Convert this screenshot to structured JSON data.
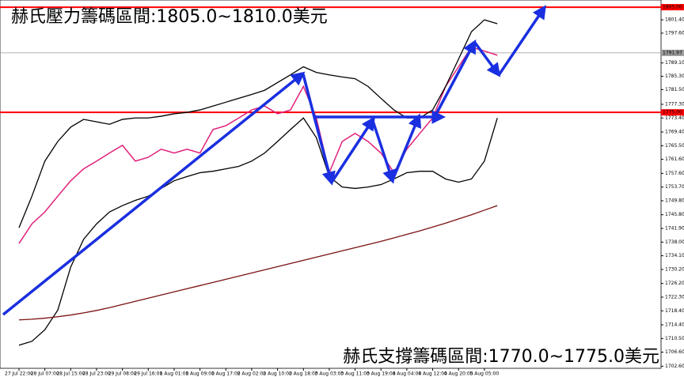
{
  "chart_data": {
    "type": "line",
    "annotations": [
      "赫氏壓力籌碼區間:1805.0~1810.0美元",
      "赫氏支撐籌碼區間:1770.0~1775.0美元"
    ],
    "categories": [
      "27 Jul 22:00",
      null,
      "28 Jul 07:00",
      null,
      "28 Jul 15:00",
      null,
      "28 Jul 23:00",
      null,
      "29 Jul 08:00",
      null,
      "29 Jul 16:00",
      null,
      "1 Aug 01:00",
      null,
      "1 Aug 09:00",
      null,
      "1 Aug 17:00",
      null,
      "2 Aug 02:00",
      null,
      "2 Aug 10:00",
      null,
      "2 Aug 18:00",
      null,
      "3 Aug 03:00",
      null,
      "3 Aug 11:00",
      null,
      "3 Aug 19:00",
      null,
      "4 Aug 04:00",
      null,
      "4 Aug 12:00",
      null,
      "4 Aug 20:00",
      null,
      "5 Aug 05:00",
      null
    ],
    "series": [
      {
        "color": "#e0207a",
        "values": [
          1737.6,
          1743.2,
          1746.6,
          1751.1,
          1755.5,
          1758.9,
          1761.1,
          1763.4,
          1765.6,
          1761.1,
          1762.2,
          1764.5,
          1763.4,
          1764.5,
          1763.4,
          1770.1,
          1771.2,
          1773.4,
          1775.7,
          1776.8,
          1774.6,
          1775.7,
          1782.4,
          1773.4,
          1757.8,
          1766.7,
          1769.0,
          1766.7,
          1763.4,
          1757.8,
          1764.5,
          1769.0,
          1773.4,
          1782.4,
          1788.0,
          1793.6,
          1792.5,
          1791.3
        ]
      },
      {
        "color": "#000000",
        "values": [
          1742.1,
          1751.1,
          1761.1,
          1766.7,
          1770.8,
          1773.0,
          1772.3,
          1771.6,
          1773.0,
          1773.4,
          1773.4,
          1773.9,
          1774.6,
          1775.0,
          1775.7,
          1776.8,
          1777.9,
          1779.0,
          1780.1,
          1781.3,
          1783.5,
          1785.7,
          1788.0,
          1786.4,
          1785.7,
          1785.1,
          1784.6,
          1782.4,
          1779.0,
          1775.7,
          1773.4,
          1773.4,
          1775.7,
          1782.4,
          1790.2,
          1798.0,
          1801.4,
          1800.3
        ]
      },
      {
        "color": "#000000",
        "values": [
          1708.6,
          1709.7,
          1713.0,
          1718.6,
          1730.9,
          1738.8,
          1743.2,
          1746.6,
          1748.4,
          1749.9,
          1751.1,
          1753.3,
          1755.5,
          1756.7,
          1757.8,
          1758.2,
          1758.9,
          1759.6,
          1761.1,
          1763.4,
          1766.7,
          1770.1,
          1773.4,
          1767.8,
          1756.7,
          1753.7,
          1753.3,
          1753.7,
          1754.4,
          1756.0,
          1757.8,
          1758.2,
          1758.2,
          1756.0,
          1755.1,
          1756.0,
          1761.1,
          1773.4
        ]
      },
      {
        "color": "#7b1010",
        "values": [
          1715.8,
          1716.0,
          1716.3,
          1716.7,
          1717.2,
          1717.8,
          1718.5,
          1719.3,
          1720.2,
          1721.1,
          1722.0,
          1722.9,
          1723.8,
          1724.7,
          1725.6,
          1726.5,
          1727.4,
          1728.3,
          1729.2,
          1730.1,
          1731.0,
          1731.9,
          1732.8,
          1733.7,
          1734.6,
          1735.5,
          1736.4,
          1737.3,
          1738.2,
          1739.2,
          1740.2,
          1741.2,
          1742.3,
          1743.4,
          1744.6,
          1745.8,
          1747.1,
          1748.4
        ]
      }
    ],
    "hlines": [
      {
        "value": 1805.0,
        "label": "1805.00",
        "color": "#ff0000"
      },
      {
        "value": 1791.97,
        "label": "1791.97",
        "color": "#9a9a9a"
      },
      {
        "value": 1775.0,
        "label": "1775.00",
        "color": "#ff0000"
      }
    ],
    "ylim": [
      1702.0,
      1806.6
    ],
    "yticks": [
      {
        "value": 1801.4,
        "label": "1801.40"
      },
      {
        "value": 1797.6,
        "label": "1797.60"
      },
      {
        "value": 1789.1,
        "label": "1789.10"
      },
      {
        "value": 1785.3,
        "label": "1785.30"
      },
      {
        "value": 1781.5,
        "label": "1781.50"
      },
      {
        "value": 1777.3,
        "label": "1777.30"
      },
      {
        "value": 1773.4,
        "label": "1773.40"
      },
      {
        "value": 1769.4,
        "label": "1769.40"
      },
      {
        "value": 1765.5,
        "label": "1765.50"
      },
      {
        "value": 1761.6,
        "label": "1761.60"
      },
      {
        "value": 1757.6,
        "label": "1757.60"
      },
      {
        "value": 1753.7,
        "label": "1753.70"
      },
      {
        "value": 1749.8,
        "label": "1749.80"
      },
      {
        "value": 1745.8,
        "label": "1745.80"
      },
      {
        "value": 1741.9,
        "label": "1741.90"
      },
      {
        "value": 1738.0,
        "label": "1738.00"
      },
      {
        "value": 1734.1,
        "label": "1734.10"
      },
      {
        "value": 1730.2,
        "label": "1730.20"
      },
      {
        "value": 1726.2,
        "label": "1726.20"
      },
      {
        "value": 1722.3,
        "label": "1722.30"
      },
      {
        "value": 1718.4,
        "label": "1718.40"
      },
      {
        "value": 1714.4,
        "label": "1714.40"
      },
      {
        "value": 1710.5,
        "label": "1710.50"
      },
      {
        "value": 1706.6,
        "label": "1706.60"
      },
      {
        "value": 1702.6,
        "label": "1702.60"
      }
    ],
    "grid": false
  }
}
